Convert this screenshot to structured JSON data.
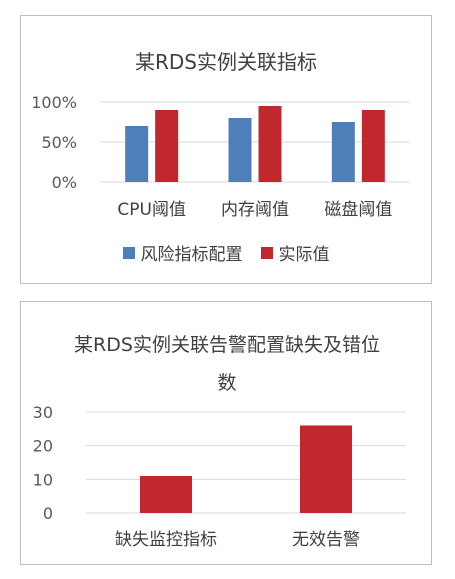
{
  "charts": {
    "chart1": {
      "title": "某RDS实例关联指标",
      "legend": [
        {
          "label": "风险指标配置",
          "color": "#4f7fb8"
        },
        {
          "label": "实际值",
          "color": "#c0282d"
        }
      ]
    },
    "chart2": {
      "title": "某RDS实例关联告警配置缺失及错位数"
    }
  },
  "chart_data": [
    {
      "type": "bar",
      "title": "某RDS实例关联指标",
      "categories": [
        "CPU阈值",
        "内存阈值",
        "磁盘阈值"
      ],
      "series": [
        {
          "name": "风险指标配置",
          "values": [
            70,
            80,
            75
          ],
          "color": "#4f7fb8"
        },
        {
          "name": "实际值",
          "values": [
            90,
            95,
            90
          ],
          "color": "#c0282d"
        }
      ],
      "ylim": [
        0,
        100
      ],
      "yticks": [
        0,
        50,
        100
      ],
      "ytick_labels": [
        "0%",
        "50%",
        "100%"
      ],
      "grid": true,
      "legend_position": "bottom"
    },
    {
      "type": "bar",
      "title": "某RDS实例关联告警配置缺失及错位数",
      "categories": [
        "缺失监控指标",
        "无效告警"
      ],
      "series": [
        {
          "values": [
            11,
            26
          ],
          "color": "#c0282d"
        }
      ],
      "ylim": [
        0,
        30
      ],
      "yticks": [
        0,
        10,
        20,
        30
      ],
      "ytick_labels": [
        "0",
        "10",
        "20",
        "30"
      ],
      "grid": true
    }
  ]
}
